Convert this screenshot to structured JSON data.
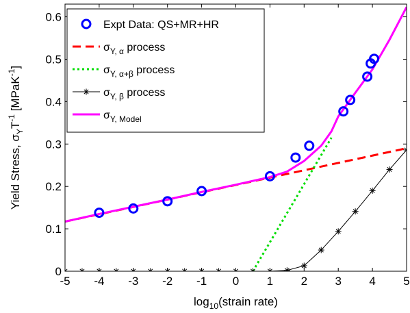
{
  "chart_data": {
    "type": "line",
    "xlabel": {
      "main": "log",
      "sub": "10",
      "rest": "(strain rate)"
    },
    "ylabel": {
      "a": "Yield Stress, σ",
      "b": "Y",
      "c": "T",
      "d": "-1",
      "e": " [MPaK",
      "f": "-1",
      "g": "]"
    },
    "xlim": [
      -5,
      5
    ],
    "ylim": [
      0,
      0.63
    ],
    "xticks": [
      -5,
      -4,
      -3,
      -2,
      -1,
      0,
      1,
      2,
      3,
      4,
      5
    ],
    "yticks": [
      0,
      0.1,
      0.2,
      0.3,
      0.4,
      0.5,
      0.6
    ],
    "xtick_labels": [
      "-5",
      "-4",
      "-3",
      "-2",
      "-1",
      "0",
      "1",
      "2",
      "3",
      "4",
      "5"
    ],
    "ytick_labels": [
      "0",
      "0.1",
      "0.2",
      "0.3",
      "0.4",
      "0.5",
      "0.6"
    ],
    "legend_position": "top-left",
    "legend": [
      {
        "key": "expt",
        "parts": [
          [
            "Expt Data: QS+MR+HR",
            ""
          ]
        ]
      },
      {
        "key": "alpha",
        "parts": [
          [
            "σ",
            ""
          ],
          [
            "Y, α",
            "sub"
          ],
          [
            " process",
            ""
          ]
        ]
      },
      {
        "key": "alphabeta",
        "parts": [
          [
            "σ",
            ""
          ],
          [
            "Y, α+β",
            "sub"
          ],
          [
            " process",
            ""
          ]
        ]
      },
      {
        "key": "beta",
        "parts": [
          [
            "σ",
            ""
          ],
          [
            "Y, β",
            "sub"
          ],
          [
            " process",
            ""
          ]
        ]
      },
      {
        "key": "model",
        "parts": [
          [
            "σ",
            ""
          ],
          [
            "Y, Model",
            "sub"
          ]
        ]
      }
    ],
    "series": [
      {
        "key": "expt",
        "style": "marker-circle",
        "color": "#0000ff",
        "points": [
          [
            -4,
            0.138
          ],
          [
            -3,
            0.148
          ],
          [
            -2,
            0.165
          ],
          [
            -1,
            0.189
          ],
          [
            1,
            0.224
          ],
          [
            1.75,
            0.268
          ],
          [
            2.15,
            0.296
          ],
          [
            3.15,
            0.377
          ],
          [
            3.35,
            0.404
          ],
          [
            3.85,
            0.459
          ],
          [
            3.95,
            0.49
          ],
          [
            4.05,
            0.501
          ]
        ]
      },
      {
        "key": "alpha",
        "style": "dashed",
        "color": "#ff0000",
        "points": [
          [
            -5,
            0.117
          ],
          [
            5,
            0.29
          ]
        ]
      },
      {
        "key": "alphabeta",
        "style": "dotted",
        "color": "#00dd00",
        "points": [
          [
            0.5,
            0
          ],
          [
            2.8,
            0.315
          ]
        ]
      },
      {
        "key": "beta",
        "style": "line-star",
        "color": "#000000",
        "points": [
          [
            -5,
            0
          ],
          [
            -4.5,
            0
          ],
          [
            -4,
            0
          ],
          [
            -3.5,
            0
          ],
          [
            -3,
            0
          ],
          [
            -2.5,
            0
          ],
          [
            -2,
            0
          ],
          [
            -1.5,
            0
          ],
          [
            -1,
            0
          ],
          [
            -0.5,
            0
          ],
          [
            0,
            0
          ],
          [
            0.5,
            0
          ],
          [
            1,
            0
          ],
          [
            1.5,
            0.002
          ],
          [
            2,
            0.013
          ],
          [
            2.5,
            0.05
          ],
          [
            3,
            0.094
          ],
          [
            3.5,
            0.141
          ],
          [
            4,
            0.19
          ],
          [
            4.5,
            0.24
          ],
          [
            5,
            0.286
          ]
        ]
      },
      {
        "key": "model",
        "style": "solid",
        "color": "#ff00ff",
        "points": [
          [
            -5,
            0.117
          ],
          [
            -4,
            0.135
          ],
          [
            -3,
            0.152
          ],
          [
            -2,
            0.169
          ],
          [
            -1,
            0.187
          ],
          [
            0,
            0.204
          ],
          [
            1,
            0.222
          ],
          [
            1.5,
            0.235
          ],
          [
            2,
            0.26
          ],
          [
            2.5,
            0.296
          ],
          [
            2.8,
            0.33
          ],
          [
            3,
            0.365
          ],
          [
            3.5,
            0.421
          ],
          [
            4,
            0.476
          ],
          [
            4.5,
            0.546
          ],
          [
            5,
            0.623
          ]
        ]
      }
    ]
  }
}
